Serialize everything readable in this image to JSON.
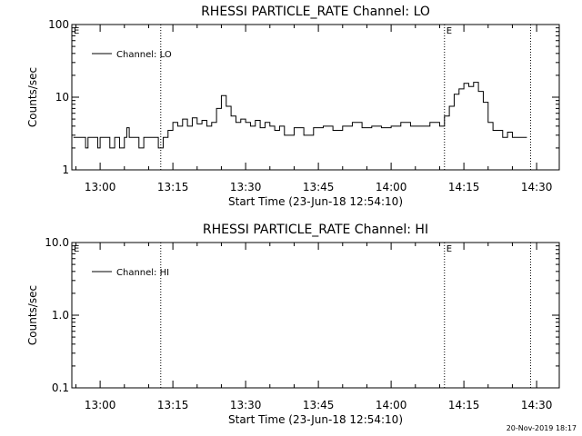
{
  "footer": {
    "timestamp": "20-Nov-2019 18:17"
  },
  "chart_data": [
    {
      "type": "line",
      "title": "RHESSI PARTICLE_RATE Channel: LO",
      "xlabel": "Start Time (23-Jun-18 12:54:10)",
      "ylabel": "Counts/sec",
      "yscale": "log",
      "ylim": [
        1,
        100
      ],
      "ytick_labels": [
        "1",
        "10",
        "100"
      ],
      "xlim": [
        "12:54:10",
        "14:34:40"
      ],
      "xtick_labels": [
        "13:00",
        "13:15",
        "13:30",
        "13:45",
        "14:00",
        "14:15",
        "14:30"
      ],
      "grid": false,
      "legend_position": "top-left",
      "vlines": [
        {
          "time": "13:12:30",
          "label": ""
        },
        {
          "time": "14:11:00",
          "label": "E"
        },
        {
          "time": "14:28:45",
          "label": ""
        }
      ],
      "corner_marker": "E",
      "series": [
        {
          "name": "Channel: LO",
          "x": [
            "12:54:30",
            "12:56:00",
            "12:57:00",
            "12:57:30",
            "12:58:00",
            "12:59:30",
            "13:00:00",
            "13:01:00",
            "13:02:00",
            "13:03:00",
            "13:04:00",
            "13:05:00",
            "13:05:30",
            "13:06:00",
            "13:07:00",
            "13:08:00",
            "13:09:00",
            "13:10:00",
            "13:11:00",
            "13:12:00",
            "13:13:00",
            "13:14:00",
            "13:15:00",
            "13:16:00",
            "13:17:00",
            "13:18:00",
            "13:19:00",
            "13:20:00",
            "13:21:00",
            "13:22:00",
            "13:23:00",
            "13:24:00",
            "13:25:00",
            "13:26:00",
            "13:27:00",
            "13:28:00",
            "13:29:00",
            "13:30:00",
            "13:31:00",
            "13:32:00",
            "13:33:00",
            "13:34:00",
            "13:35:00",
            "13:36:00",
            "13:37:00",
            "13:38:00",
            "13:40:00",
            "13:42:00",
            "13:44:00",
            "13:46:00",
            "13:48:00",
            "13:50:00",
            "13:52:00",
            "13:54:00",
            "13:56:00",
            "13:58:00",
            "14:00:00",
            "14:02:00",
            "14:04:00",
            "14:06:00",
            "14:08:00",
            "14:10:00",
            "14:11:00",
            "14:12:00",
            "14:13:00",
            "14:14:00",
            "14:15:00",
            "14:16:00",
            "14:17:00",
            "14:18:00",
            "14:19:00",
            "14:20:00",
            "14:21:00",
            "14:22:00",
            "14:23:00",
            "14:24:00",
            "14:25:00",
            "14:26:00",
            "14:27:00",
            "14:28:00"
          ],
          "values": [
            2.8,
            2.8,
            2.0,
            2.8,
            2.8,
            2.0,
            2.8,
            2.8,
            2.0,
            2.8,
            2.0,
            2.8,
            3.8,
            2.8,
            2.8,
            2.0,
            2.8,
            2.8,
            2.8,
            2.0,
            2.8,
            3.5,
            4.5,
            4.0,
            5.0,
            4.0,
            5.2,
            4.3,
            4.8,
            4.0,
            4.5,
            7.0,
            10.5,
            7.5,
            5.5,
            4.5,
            5.0,
            4.5,
            4.0,
            4.8,
            3.8,
            4.5,
            4.0,
            3.5,
            4.0,
            3.0,
            3.8,
            3.0,
            3.8,
            4.0,
            3.5,
            4.0,
            4.5,
            3.8,
            4.0,
            3.8,
            4.0,
            4.5,
            4.0,
            4.0,
            4.5,
            4.0,
            5.5,
            7.5,
            11.0,
            13.0,
            15.5,
            14.0,
            16.0,
            12.0,
            8.5,
            4.5,
            3.5,
            3.5,
            2.8,
            3.3,
            2.8,
            2.8,
            2.8,
            2.8
          ]
        }
      ]
    },
    {
      "type": "line",
      "title": "RHESSI PARTICLE_RATE Channel: HI",
      "xlabel": "Start Time (23-Jun-18 12:54:10)",
      "ylabel": "Counts/sec",
      "yscale": "log",
      "ylim": [
        0.1,
        10
      ],
      "ytick_labels": [
        "0.1",
        "1.0",
        "10.0"
      ],
      "xlim": [
        "12:54:10",
        "14:34:40"
      ],
      "xtick_labels": [
        "13:00",
        "13:15",
        "13:30",
        "13:45",
        "14:00",
        "14:15",
        "14:30"
      ],
      "grid": false,
      "legend_position": "top-left",
      "vlines": [
        {
          "time": "13:12:30",
          "label": ""
        },
        {
          "time": "14:11:00",
          "label": "E"
        },
        {
          "time": "14:28:45",
          "label": ""
        }
      ],
      "corner_marker": "E",
      "series": [
        {
          "name": "Channel: HI",
          "x": [],
          "values": []
        }
      ]
    }
  ]
}
